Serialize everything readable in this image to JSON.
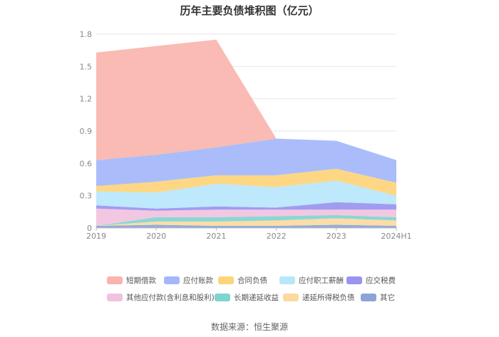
{
  "title": "历年主要负债堆积图（亿元）",
  "source": "数据来源：恒生聚源",
  "chart_data": {
    "type": "area",
    "stacked": true,
    "title": "历年主要负债堆积图（亿元）",
    "x": [
      "2019",
      "2020",
      "2021",
      "2022",
      "2023",
      "2024H1"
    ],
    "y_ticks": [
      "0",
      "0.3",
      "0.6",
      "0.9",
      "1.2",
      "1.5",
      "1.8"
    ],
    "ylim": [
      0,
      1.8
    ],
    "grid": true,
    "legend_position": "bottom",
    "series": [
      {
        "name": "其它",
        "color": "#8aa5d6",
        "values": [
          0.02,
          0.03,
          0.02,
          0.02,
          0.03,
          0.02
        ]
      },
      {
        "name": "递延所得税负债",
        "color": "#fcd9a0",
        "values": [
          0.0,
          0.03,
          0.04,
          0.05,
          0.06,
          0.05
        ]
      },
      {
        "name": "长期递延收益",
        "color": "#80d4d0",
        "values": [
          0.0,
          0.04,
          0.04,
          0.04,
          0.03,
          0.03
        ]
      },
      {
        "name": "其他应付款(含利息和股利)",
        "color": "#f1c2e0",
        "values": [
          0.16,
          0.06,
          0.07,
          0.06,
          0.05,
          0.07
        ]
      },
      {
        "name": "应交税费",
        "color": "#9a94f0",
        "values": [
          0.03,
          0.02,
          0.03,
          0.02,
          0.07,
          0.05
        ]
      },
      {
        "name": "应付职工薪酬",
        "color": "#b8e6fb",
        "values": [
          0.13,
          0.15,
          0.21,
          0.19,
          0.2,
          0.08
        ]
      },
      {
        "name": "合同负债",
        "color": "#fdd47a",
        "values": [
          0.05,
          0.1,
          0.08,
          0.11,
          0.11,
          0.12
        ]
      },
      {
        "name": "应付账款",
        "color": "#a3b7fa",
        "values": [
          0.24,
          0.25,
          0.26,
          0.34,
          0.26,
          0.21
        ]
      },
      {
        "name": "短期借款",
        "color": "#f9b5ad",
        "values": [
          1.0,
          1.01,
          1.0,
          0.0,
          0.0,
          0.0
        ]
      }
    ]
  },
  "legend": {
    "rows": [
      [
        "短期借款",
        "应付账款",
        "合同负债",
        "应付职工薪酬",
        "应交税费"
      ],
      [
        "其他应付款(含利息和股利)",
        "长期递延收益",
        "递延所得税负债",
        "其它"
      ]
    ]
  }
}
